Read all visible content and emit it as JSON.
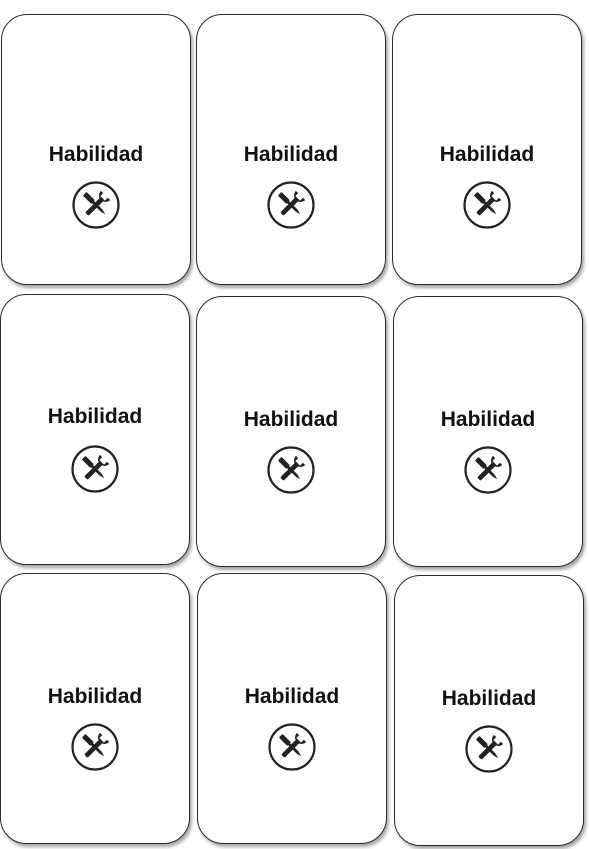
{
  "cards": [
    {
      "title": "Habilidad",
      "icon": "tools-icon"
    },
    {
      "title": "Habilidad",
      "icon": "tools-icon"
    },
    {
      "title": "Habilidad",
      "icon": "tools-icon"
    },
    {
      "title": "Habilidad",
      "icon": "tools-icon"
    },
    {
      "title": "Habilidad",
      "icon": "tools-icon"
    },
    {
      "title": "Habilidad",
      "icon": "tools-icon"
    },
    {
      "title": "Habilidad",
      "icon": "tools-icon"
    },
    {
      "title": "Habilidad",
      "icon": "tools-icon"
    },
    {
      "title": "Habilidad",
      "icon": "tools-icon"
    }
  ],
  "colors": {
    "card_border": "#2b2b2b",
    "card_background": "#ffffff",
    "text": "#111111",
    "icon": "#222222"
  }
}
